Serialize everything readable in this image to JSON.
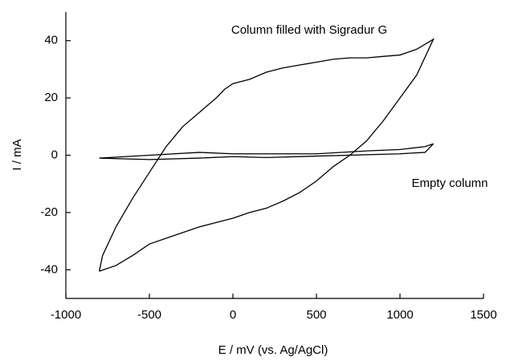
{
  "chart_data": {
    "type": "line",
    "xlabel": "E / mV (vs. Ag/AgCl)",
    "ylabel": "I / mA",
    "xlim": [
      -1000,
      1500
    ],
    "xticks": [
      -1000,
      -500,
      0,
      500,
      1000,
      1500
    ],
    "ylim": [
      -50,
      50
    ],
    "yticks": [
      -40,
      -20,
      0,
      20,
      40
    ],
    "series": [
      {
        "name": "Column filled with Sigradur G",
        "color": "#000000",
        "x": [
          -800,
          -780,
          -700,
          -600,
          -500,
          -400,
          -300,
          -200,
          -100,
          -50,
          0,
          100,
          200,
          300,
          400,
          500,
          600,
          700,
          800,
          900,
          1000,
          1100,
          1200,
          1100,
          1000,
          900,
          800,
          700,
          600,
          500,
          400,
          300,
          200,
          100,
          0,
          -100,
          -200,
          -300,
          -400,
          -500,
          -600,
          -700,
          -800
        ],
        "values": [
          -40.5,
          -35,
          -25,
          -15,
          -6,
          3,
          10,
          15,
          20,
          23,
          25,
          26.5,
          29,
          30.5,
          31.5,
          32.5,
          33.5,
          34,
          34,
          34.5,
          35,
          37,
          40.5,
          28,
          20,
          12,
          5,
          0,
          -4,
          -9,
          -13,
          -16,
          -18.5,
          -20,
          -22,
          -23.5,
          -25,
          -27,
          -29,
          -31,
          -35,
          -38.5,
          -40.5
        ]
      },
      {
        "name": "Empty column",
        "color": "#000000",
        "x": [
          -800,
          -500,
          -200,
          0,
          500,
          800,
          1000,
          1150,
          1200,
          1150,
          1000,
          500,
          200,
          0,
          -200,
          -500,
          -800
        ],
        "values": [
          -1,
          0,
          1,
          0.5,
          0.5,
          1.5,
          2,
          3,
          4,
          1,
          0.5,
          -0.3,
          -0.8,
          -0.5,
          -1,
          -1.5,
          -1
        ]
      }
    ]
  }
}
